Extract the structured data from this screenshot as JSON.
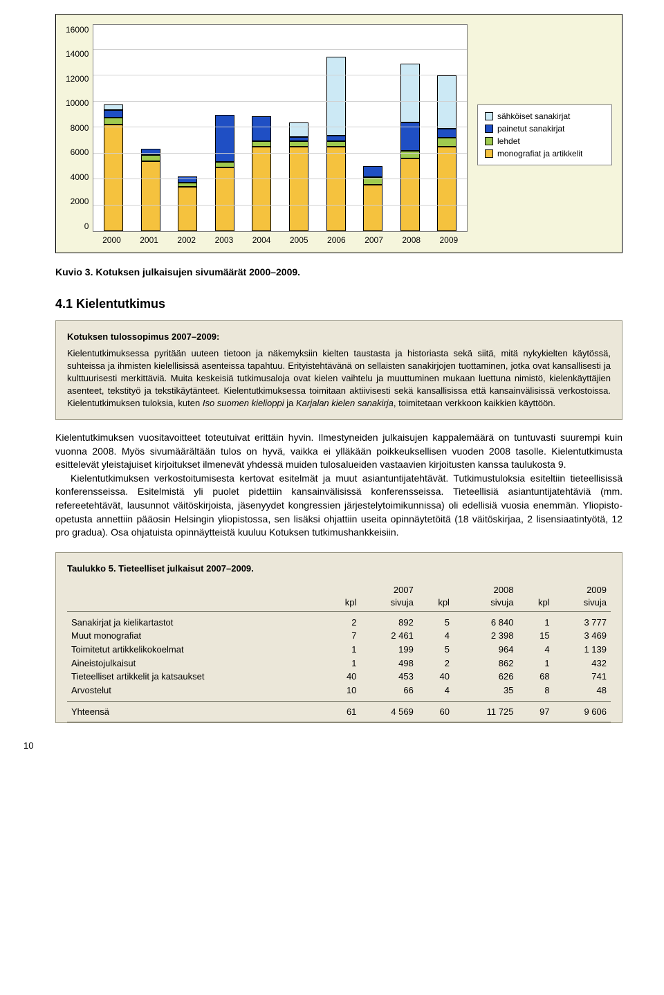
{
  "chart": {
    "type": "stacked-bar",
    "ylim": [
      0,
      16000
    ],
    "ytick_step": 2000,
    "yticks": [
      "16000",
      "14000",
      "12000",
      "10000",
      "8000",
      "6000",
      "4000",
      "2000",
      "0"
    ],
    "years": [
      "2000",
      "2001",
      "2002",
      "2003",
      "2004",
      "2005",
      "2006",
      "2007",
      "2008",
      "2009"
    ],
    "legend": [
      {
        "label": "sähköiset sanakirjat",
        "color": "#cce9f5"
      },
      {
        "label": "painetut sanakirjat",
        "color": "#1f4fc4"
      },
      {
        "label": "lehdet",
        "color": "#9fca4f"
      },
      {
        "label": "monografiat ja artikkelit",
        "color": "#f5c23e"
      }
    ],
    "series_colors": {
      "sahkoiset": "#cce9f5",
      "painetut": "#1f4fc4",
      "lehdet": "#9fca4f",
      "mono": "#f5c23e"
    },
    "stacks": [
      {
        "mono": 8200,
        "lehdet": 550,
        "painetut": 600,
        "sahkoiset": 400
      },
      {
        "mono": 5400,
        "lehdet": 450,
        "painetut": 500,
        "sahkoiset": 0
      },
      {
        "mono": 3400,
        "lehdet": 350,
        "painetut": 450,
        "sahkoiset": 0
      },
      {
        "mono": 4900,
        "lehdet": 450,
        "painetut": 3600,
        "sahkoiset": 0
      },
      {
        "mono": 6500,
        "lehdet": 450,
        "painetut": 1900,
        "sahkoiset": 0
      },
      {
        "mono": 6500,
        "lehdet": 450,
        "painetut": 300,
        "sahkoiset": 1100
      },
      {
        "mono": 6500,
        "lehdet": 450,
        "painetut": 400,
        "sahkoiset": 6100
      },
      {
        "mono": 3600,
        "lehdet": 550,
        "painetut": 850,
        "sahkoiset": 0
      },
      {
        "mono": 5600,
        "lehdet": 600,
        "painetut": 2200,
        "sahkoiset": 4500
      },
      {
        "mono": 6500,
        "lehdet": 700,
        "painetut": 700,
        "sahkoiset": 4100
      }
    ],
    "background": "#f5f5dc",
    "plot_bg": "#ffffff",
    "grid_color": "#d0d0d0",
    "label_fontsize": 12
  },
  "caption": "Kuvio 3. Kotuksen julkaisujen sivumäärät 2000–2009.",
  "section_title": "4.1 Kielentutkimus",
  "infobox": {
    "title": "Kotuksen tulossopimus 2007–2009:",
    "body_plain_a": "Kielentutkimuksessa pyritään uuteen tietoon ja näkemyksiin kielten taustasta ja historiasta sekä siitä, mitä nykykielten käytössä, suhteissa ja ihmisten kielellisissä asenteissa tapahtuu. Erityistehtävänä on sellaisten sanakirjojen tuottaminen, jotka ovat kansallisesti ja kulttuurisesti merkittäviä. Muita keskeisiä tutkimusaloja ovat kielen vaihtelu ja muuttuminen mukaan luettuna nimistö, kielenkäyttäjien asenteet, tekstityö ja tekstikäytänteet. Kielentutkimuksessa toimitaan aktiivisesti sekä kansallisissa että kansainvälisissä verkostoissa. Kielentutkimuksen tuloksia, kuten ",
    "italic_1": "Iso suomen kielioppi",
    "body_plain_b": " ja ",
    "italic_2": "Karjalan kielen sanakirja",
    "body_plain_c": ", toimitetaan verkkoon kaikkien käyttöön."
  },
  "paragraphs": {
    "p1": "Kielentutkimuksen vuositavoitteet toteutuivat erittäin hyvin. Ilmestyneiden julkaisujen kappalemäärä on tuntuvasti suurempi kuin vuonna 2008. Myös sivumäärältään tulos on hyvä, vaikka ei ylläkään poikkeuksellisen vuoden 2008 tasolle. Kielentutkimusta esittelevät yleistajuiset kirjoitukset ilmenevät yhdessä muiden tulosalueiden vastaavien kirjoitusten kanssa taulukosta 9.",
    "p2": "Kielentutkimuksen verkostoitumisesta kertovat esitelmät ja muut asiantuntijatehtävät. Tutkimustuloksia esiteltiin tieteellisissä konferensseissa. Esitelmistä yli puolet pidettiin kansainvälisissä konferensseissa. Tieteellisiä asiantuntijatehtäviä (mm. refereetehtävät, lausunnot väitöskirjoista, jäsenyydet kongressien järjestelytoimikunnissa) oli edellisiä vuosia enemmän. Yliopisto-opetusta annettiin pääosin Helsingin yliopistossa, sen lisäksi ohjattiin useita opinnäytetöitä (18 väitöskirjaa, 2 lisensiaatintyötä, 12 pro gradua). Osa ohjatuista opinnäytteistä kuuluu Kotuksen tutkimushankkeisiin."
  },
  "table": {
    "title": "Taulukko 5. Tieteelliset julkaisut 2007–2009.",
    "year_headers": [
      "2007",
      "2008",
      "2009"
    ],
    "sub_headers": [
      "kpl",
      "sivuja",
      "kpl",
      "sivuja",
      "kpl",
      "sivuja"
    ],
    "rows": [
      {
        "label": "Sanakirjat ja kielikartastot",
        "cells": [
          "2",
          "892",
          "5",
          "6 840",
          "1",
          "3 777"
        ]
      },
      {
        "label": "Muut monografiat",
        "cells": [
          "7",
          "2 461",
          "4",
          "2 398",
          "15",
          "3 469"
        ]
      },
      {
        "label": "Toimitetut artikkelikokoelmat",
        "cells": [
          "1",
          "199",
          "5",
          "964",
          "4",
          "1 139"
        ]
      },
      {
        "label": "Aineistojulkaisut",
        "cells": [
          "1",
          "498",
          "2",
          "862",
          "1",
          "432"
        ]
      },
      {
        "label": "Tieteelliset artikkelit ja katsaukset",
        "cells": [
          "40",
          "453",
          "40",
          "626",
          "68",
          "741"
        ]
      },
      {
        "label": "Arvostelut",
        "cells": [
          "10",
          "66",
          "4",
          "35",
          "8",
          "48"
        ]
      }
    ],
    "total": {
      "label": "Yhteensä",
      "cells": [
        "61",
        "4 569",
        "60",
        "11 725",
        "97",
        "9 606"
      ]
    }
  },
  "pagenum": "10"
}
